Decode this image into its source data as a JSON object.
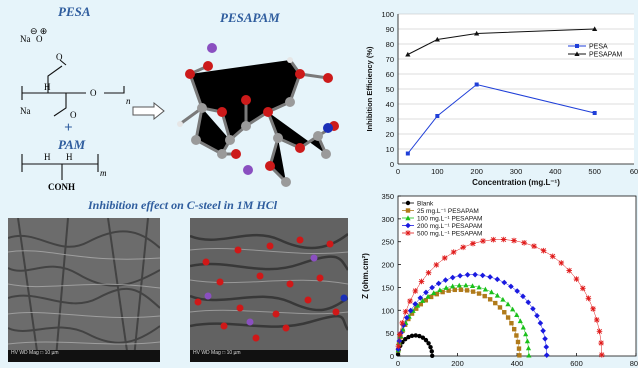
{
  "schemes": {
    "pesa_label": "PESA",
    "pesapam_label": "PESAPAM",
    "pam_label": "PAM",
    "plus": "+",
    "na1": "Na",
    "na2": "Na",
    "o_left": "O",
    "o_right": "O",
    "o_bottom": "O",
    "n_sub": "n",
    "h2": "H",
    "m_sub": "m",
    "conh2": "CONH",
    "h_sub": "H"
  },
  "sem": {
    "caption": "Inhibition effect on C-steel in 1M HCl",
    "left_bar": "HV  WD  Mag  □            10 µm",
    "right_bar": "HV  WD  Mag  □            10 µm",
    "colors": {
      "oxygen": "#d01818",
      "sodium": "#8a4fc0",
      "nitrogen": "#1a2fb8"
    }
  },
  "chart_data": [
    {
      "type": "line",
      "xlabel": "Concentration (mg.L⁻¹)",
      "ylabel": "Inhibition Efficiency (%)",
      "xlim": [
        0,
        600
      ],
      "ylim": [
        0,
        100
      ],
      "xticks": [
        "0",
        "100",
        "200",
        "300",
        "400",
        "500",
        "60"
      ],
      "yticks": [
        "0",
        "10",
        "20",
        "30",
        "40",
        "50",
        "60",
        "70",
        "80",
        "90",
        "100"
      ],
      "legend": "right",
      "series": [
        {
          "name": "PESA",
          "x": [
            25,
            100,
            200,
            500
          ],
          "y": [
            7,
            32,
            53,
            34
          ],
          "color": "#1f3fd8"
        },
        {
          "name": "PESAPAM",
          "x": [
            25,
            100,
            200,
            500
          ],
          "y": [
            73,
            83,
            87,
            90
          ],
          "color": "#111111"
        }
      ]
    },
    {
      "type": "scatter",
      "xlabel": "Z (ohm.cm²)",
      "ylabel": "Z (ohm.cm²)",
      "xlim": [
        0,
        800
      ],
      "ylim": [
        0,
        350
      ],
      "xticks": [
        "0",
        "200",
        "400",
        "600",
        "800"
      ],
      "yticks": [
        "0",
        "50",
        "100",
        "150",
        "200",
        "250",
        "300",
        "350"
      ],
      "legend": "top-left",
      "series": [
        {
          "name": "Blank",
          "diameter": 115,
          "peak": 45,
          "color": "#000000",
          "marker": "circle"
        },
        {
          "name": "25  mg.L⁻¹ PESAPAM",
          "diameter": 408,
          "peak": 145,
          "color": "#b07a1a",
          "marker": "square"
        },
        {
          "name": "100 mg.L⁻¹ PESAPAM",
          "diameter": 440,
          "peak": 155,
          "color": "#1ac01a",
          "marker": "triangle"
        },
        {
          "name": "200 mg.L⁻¹ PESAPAM",
          "diameter": 500,
          "peak": 178,
          "color": "#1a1ae0",
          "marker": "diamond"
        },
        {
          "name": "500 mg.L⁻¹ PESAPAM",
          "diameter": 685,
          "peak": 255,
          "color": "#e01a1a",
          "marker": "star"
        }
      ]
    }
  ]
}
